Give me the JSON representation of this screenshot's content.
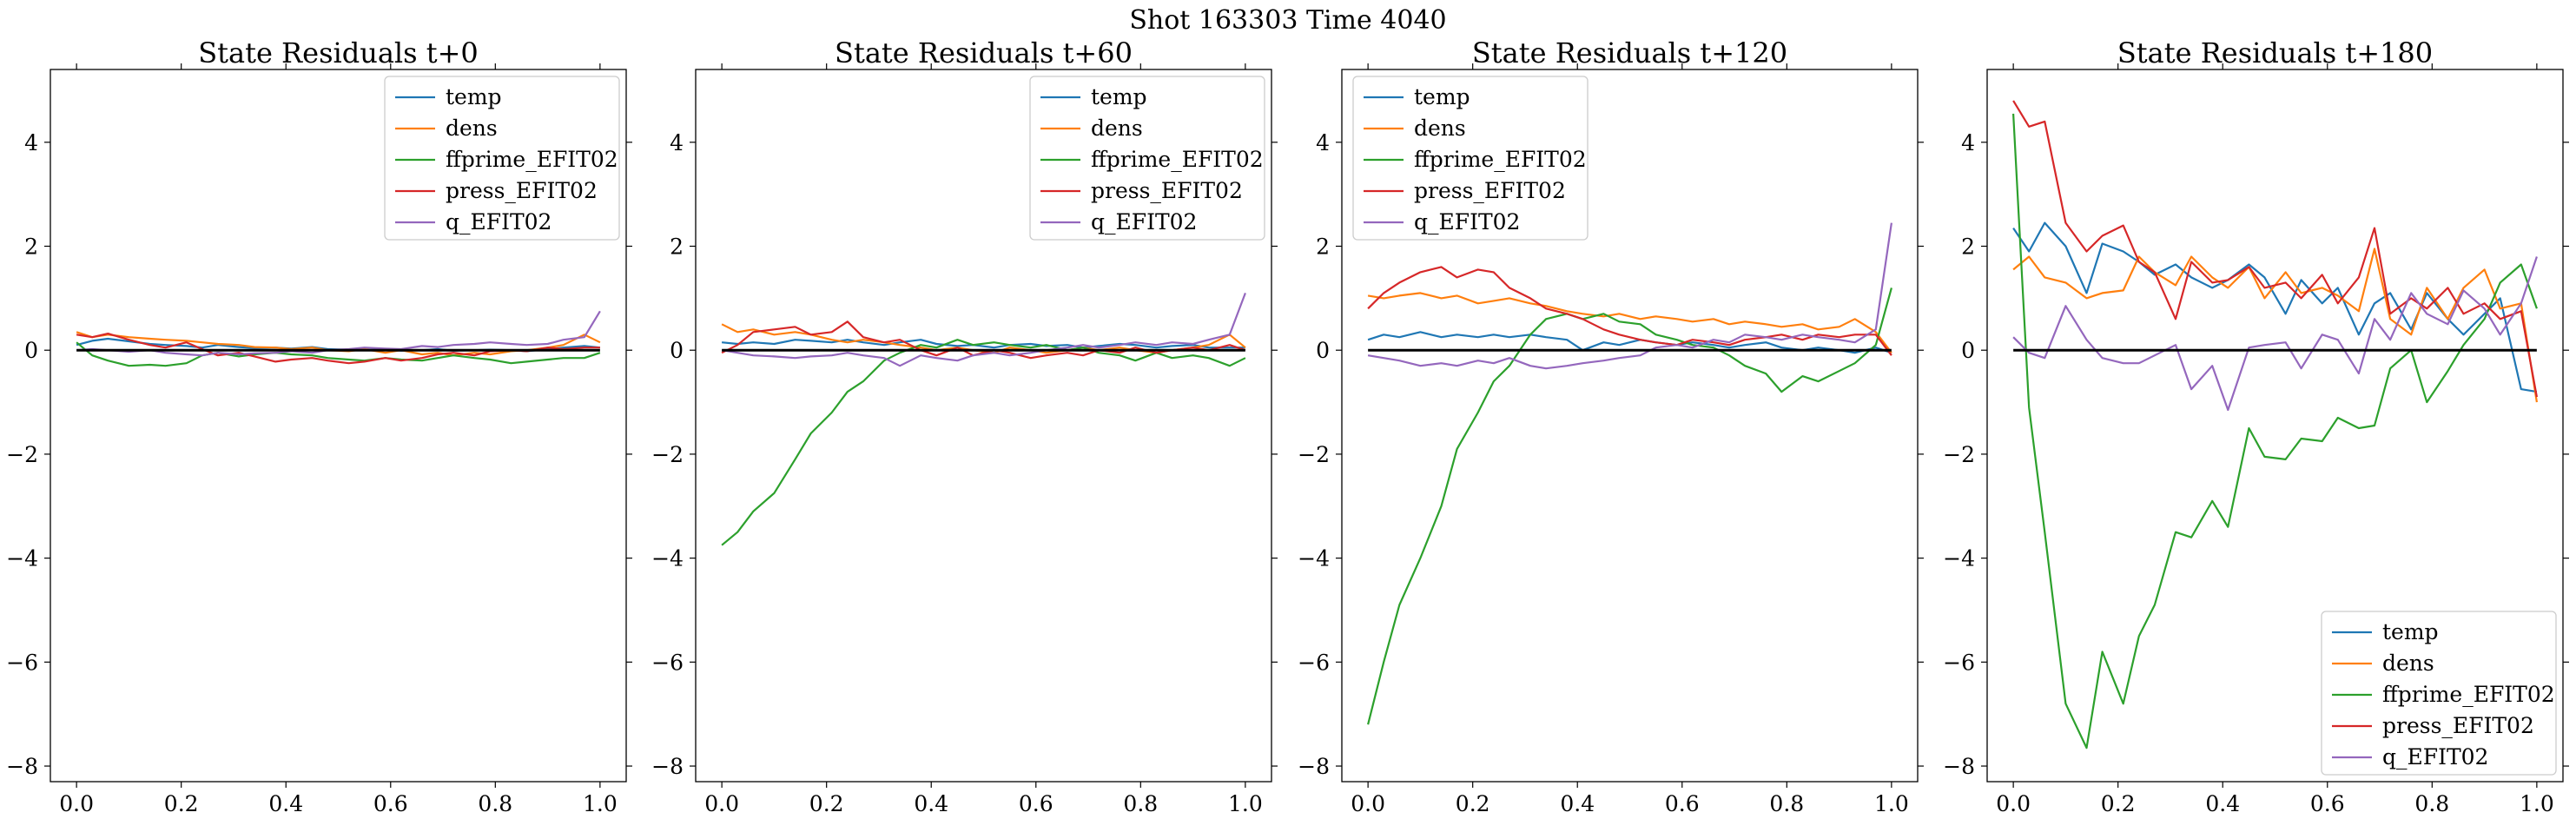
{
  "suptitle": "Shot 163303   Time 4040",
  "colors": {
    "temp": "#1f77b4",
    "dens": "#ff7f0e",
    "ffprime_EFIT02": "#2ca02c",
    "press_EFIT02": "#d62728",
    "q_EFIT02": "#9467bd",
    "zero_line": "#000000"
  },
  "chart_data": [
    {
      "type": "line",
      "title": "State Residuals t+0",
      "xlabel": "",
      "ylabel": "",
      "xlim": [
        -0.05,
        1.05
      ],
      "ylim": [
        -8.3,
        5.4
      ],
      "xticks": [
        "0.0",
        "0.2",
        "0.4",
        "0.6",
        "0.8",
        "1.0"
      ],
      "yticks": [
        "−8",
        "−6",
        "−4",
        "−2",
        "0",
        "2",
        "4"
      ],
      "grid": false,
      "legend_position": "upper-right",
      "x": [
        0.0,
        0.03,
        0.06,
        0.1,
        0.14,
        0.17,
        0.21,
        0.24,
        0.27,
        0.31,
        0.34,
        0.38,
        0.41,
        0.45,
        0.48,
        0.52,
        0.55,
        0.59,
        0.62,
        0.66,
        0.69,
        0.72,
        0.76,
        0.79,
        0.83,
        0.86,
        0.9,
        0.93,
        0.97,
        1.0
      ],
      "series": [
        {
          "name": "temp",
          "values": [
            0.1,
            0.18,
            0.22,
            0.17,
            0.12,
            0.1,
            0.08,
            0.05,
            0.1,
            0.06,
            0.04,
            0.05,
            0.03,
            0.06,
            0.02,
            0.01,
            0.0,
            0.02,
            -0.01,
            0.0,
            0.02,
            -0.01,
            0.0,
            0.01,
            0.0,
            -0.02,
            0.02,
            0.05,
            0.08,
            0.05
          ]
        },
        {
          "name": "dens",
          "values": [
            0.35,
            0.25,
            0.3,
            0.25,
            0.22,
            0.2,
            0.18,
            0.15,
            0.12,
            0.1,
            0.06,
            0.05,
            0.02,
            0.05,
            0.0,
            -0.02,
            0.02,
            -0.05,
            0.0,
            -0.08,
            -0.05,
            -0.1,
            -0.05,
            -0.08,
            -0.02,
            0.0,
            0.05,
            0.1,
            0.3,
            0.15
          ]
        },
        {
          "name": "ffprime_EFIT02",
          "values": [
            0.15,
            -0.1,
            -0.2,
            -0.3,
            -0.28,
            -0.3,
            -0.25,
            -0.1,
            -0.05,
            -0.12,
            -0.08,
            -0.05,
            -0.08,
            -0.1,
            -0.15,
            -0.18,
            -0.2,
            -0.15,
            -0.18,
            -0.2,
            -0.15,
            -0.1,
            -0.15,
            -0.18,
            -0.25,
            -0.22,
            -0.18,
            -0.15,
            -0.15,
            -0.05
          ]
        },
        {
          "name": "press_EFIT02",
          "values": [
            0.3,
            0.25,
            0.32,
            0.2,
            0.1,
            0.05,
            0.15,
            0.02,
            -0.1,
            -0.05,
            -0.12,
            -0.22,
            -0.18,
            -0.15,
            -0.2,
            -0.25,
            -0.22,
            -0.15,
            -0.2,
            -0.15,
            -0.08,
            -0.05,
            -0.1,
            -0.02,
            0.0,
            -0.02,
            0.05,
            0.02,
            0.05,
            0.05
          ]
        },
        {
          "name": "q_EFIT02",
          "values": [
            0.0,
            0.02,
            0.0,
            -0.03,
            0.0,
            -0.05,
            -0.08,
            -0.1,
            -0.05,
            -0.08,
            -0.06,
            -0.05,
            -0.02,
            -0.05,
            0.0,
            0.02,
            0.05,
            0.03,
            0.02,
            0.08,
            0.06,
            0.1,
            0.12,
            0.15,
            0.12,
            0.1,
            0.12,
            0.2,
            0.25,
            0.75
          ]
        }
      ]
    },
    {
      "type": "line",
      "title": "State Residuals t+60",
      "xlabel": "",
      "ylabel": "",
      "xlim": [
        -0.05,
        1.05
      ],
      "ylim": [
        -8.3,
        5.4
      ],
      "xticks": [
        "0.0",
        "0.2",
        "0.4",
        "0.6",
        "0.8",
        "1.0"
      ],
      "yticks": [
        "−8",
        "−6",
        "−4",
        "−2",
        "0",
        "2",
        "4"
      ],
      "grid": false,
      "legend_position": "upper-right",
      "x": [
        0.0,
        0.03,
        0.06,
        0.1,
        0.14,
        0.17,
        0.21,
        0.24,
        0.27,
        0.31,
        0.34,
        0.38,
        0.41,
        0.45,
        0.48,
        0.52,
        0.55,
        0.59,
        0.62,
        0.66,
        0.69,
        0.72,
        0.76,
        0.79,
        0.83,
        0.86,
        0.9,
        0.93,
        0.97,
        1.0
      ],
      "series": [
        {
          "name": "temp",
          "values": [
            0.15,
            0.12,
            0.15,
            0.12,
            0.2,
            0.18,
            0.15,
            0.2,
            0.15,
            0.1,
            0.15,
            0.2,
            0.12,
            0.08,
            0.1,
            0.05,
            0.1,
            0.12,
            0.08,
            0.1,
            0.05,
            0.08,
            0.12,
            0.1,
            0.05,
            0.08,
            0.1,
            0.05,
            0.05,
            0.05
          ]
        },
        {
          "name": "dens",
          "values": [
            0.5,
            0.35,
            0.4,
            0.3,
            0.35,
            0.3,
            0.2,
            0.15,
            0.2,
            0.15,
            0.1,
            0.05,
            0.0,
            0.05,
            0.0,
            -0.05,
            0.05,
            0.0,
            -0.05,
            0.0,
            0.05,
            0.0,
            0.05,
            0.0,
            -0.05,
            0.0,
            0.05,
            0.1,
            0.3,
            0.05
          ]
        },
        {
          "name": "ffprime_EFIT02",
          "values": [
            -3.75,
            -3.5,
            -3.1,
            -2.75,
            -2.1,
            -1.6,
            -1.2,
            -0.8,
            -0.6,
            -0.2,
            -0.05,
            0.1,
            0.05,
            0.2,
            0.1,
            0.15,
            0.1,
            0.05,
            0.1,
            0.0,
            0.05,
            -0.05,
            -0.1,
            -0.2,
            -0.05,
            -0.15,
            -0.1,
            -0.15,
            -0.3,
            -0.15
          ]
        },
        {
          "name": "press_EFIT02",
          "values": [
            -0.05,
            0.1,
            0.35,
            0.4,
            0.45,
            0.3,
            0.35,
            0.55,
            0.25,
            0.15,
            0.2,
            0.0,
            -0.1,
            0.05,
            -0.1,
            0.0,
            -0.05,
            -0.15,
            -0.1,
            -0.05,
            -0.1,
            0.0,
            -0.05,
            0.05,
            -0.05,
            0.0,
            0.05,
            0.0,
            0.1,
            0.0
          ]
        },
        {
          "name": "q_EFIT02",
          "values": [
            0.0,
            -0.05,
            -0.1,
            -0.12,
            -0.15,
            -0.12,
            -0.1,
            -0.05,
            -0.1,
            -0.15,
            -0.3,
            -0.1,
            -0.15,
            -0.2,
            -0.1,
            -0.05,
            -0.1,
            -0.05,
            0.0,
            0.05,
            0.1,
            0.05,
            0.1,
            0.15,
            0.1,
            0.15,
            0.12,
            0.2,
            0.3,
            1.1
          ]
        }
      ]
    },
    {
      "type": "line",
      "title": "State Residuals t+120",
      "xlabel": "",
      "ylabel": "",
      "xlim": [
        -0.05,
        1.05
      ],
      "ylim": [
        -8.3,
        5.4
      ],
      "xticks": [
        "0.0",
        "0.2",
        "0.4",
        "0.6",
        "0.8",
        "1.0"
      ],
      "yticks": [
        "−8",
        "−6",
        "−4",
        "−2",
        "0",
        "2",
        "4"
      ],
      "grid": false,
      "legend_position": "upper-left",
      "x": [
        0.0,
        0.03,
        0.06,
        0.1,
        0.14,
        0.17,
        0.21,
        0.24,
        0.27,
        0.31,
        0.34,
        0.38,
        0.41,
        0.45,
        0.48,
        0.52,
        0.55,
        0.59,
        0.62,
        0.66,
        0.69,
        0.72,
        0.76,
        0.79,
        0.83,
        0.86,
        0.9,
        0.93,
        0.97,
        1.0
      ],
      "series": [
        {
          "name": "temp",
          "values": [
            0.2,
            0.3,
            0.25,
            0.35,
            0.25,
            0.3,
            0.25,
            0.3,
            0.25,
            0.3,
            0.25,
            0.2,
            0.0,
            0.15,
            0.1,
            0.2,
            0.15,
            0.1,
            0.15,
            0.1,
            0.05,
            0.1,
            0.15,
            0.05,
            0.0,
            0.05,
            0.0,
            -0.05,
            0.05,
            -0.05
          ]
        },
        {
          "name": "dens",
          "values": [
            1.05,
            1.0,
            1.05,
            1.1,
            1.0,
            1.05,
            0.9,
            0.95,
            1.0,
            0.9,
            0.85,
            0.75,
            0.7,
            0.65,
            0.7,
            0.6,
            0.65,
            0.6,
            0.55,
            0.6,
            0.5,
            0.55,
            0.5,
            0.45,
            0.5,
            0.4,
            0.45,
            0.6,
            0.35,
            -0.05
          ]
        },
        {
          "name": "ffprime_EFIT02",
          "values": [
            -7.2,
            -6.0,
            -4.9,
            -4.0,
            -3.0,
            -1.9,
            -1.2,
            -0.6,
            -0.3,
            0.3,
            0.6,
            0.7,
            0.6,
            0.7,
            0.55,
            0.5,
            0.3,
            0.2,
            0.1,
            0.05,
            -0.1,
            -0.3,
            -0.45,
            -0.8,
            -0.5,
            -0.6,
            -0.4,
            -0.25,
            0.1,
            1.2
          ]
        },
        {
          "name": "press_EFIT02",
          "values": [
            0.8,
            1.1,
            1.3,
            1.5,
            1.6,
            1.4,
            1.55,
            1.5,
            1.2,
            1.0,
            0.8,
            0.7,
            0.6,
            0.4,
            0.3,
            0.2,
            0.15,
            0.1,
            0.2,
            0.15,
            0.1,
            0.2,
            0.25,
            0.3,
            0.2,
            0.3,
            0.25,
            0.3,
            0.3,
            -0.1
          ]
        },
        {
          "name": "q_EFIT02",
          "values": [
            -0.1,
            -0.15,
            -0.2,
            -0.3,
            -0.25,
            -0.3,
            -0.2,
            -0.25,
            -0.15,
            -0.3,
            -0.35,
            -0.3,
            -0.25,
            -0.2,
            -0.15,
            -0.1,
            0.05,
            0.1,
            0.05,
            0.2,
            0.15,
            0.3,
            0.25,
            0.2,
            0.3,
            0.25,
            0.2,
            0.15,
            0.4,
            2.45
          ]
        }
      ]
    },
    {
      "type": "line",
      "title": "State Residuals t+180",
      "xlabel": "",
      "ylabel": "",
      "xlim": [
        -0.05,
        1.05
      ],
      "ylim": [
        -8.3,
        5.4
      ],
      "xticks": [
        "0.0",
        "0.2",
        "0.4",
        "0.6",
        "0.8",
        "1.0"
      ],
      "yticks": [
        "−8",
        "−6",
        "−4",
        "−2",
        "0",
        "2",
        "4"
      ],
      "grid": false,
      "legend_position": "lower-right",
      "x": [
        0.0,
        0.03,
        0.06,
        0.1,
        0.14,
        0.17,
        0.21,
        0.24,
        0.27,
        0.31,
        0.34,
        0.38,
        0.41,
        0.45,
        0.48,
        0.52,
        0.55,
        0.59,
        0.62,
        0.66,
        0.69,
        0.72,
        0.76,
        0.79,
        0.83,
        0.86,
        0.9,
        0.93,
        0.97,
        1.0
      ],
      "series": [
        {
          "name": "temp",
          "values": [
            2.35,
            1.9,
            2.45,
            2.0,
            1.1,
            2.05,
            1.9,
            1.7,
            1.45,
            1.65,
            1.4,
            1.2,
            1.35,
            1.65,
            1.4,
            0.7,
            1.35,
            0.9,
            1.2,
            0.3,
            0.9,
            1.1,
            0.4,
            1.1,
            0.6,
            0.3,
            0.7,
            1.0,
            -0.75,
            -0.8
          ]
        },
        {
          "name": "dens",
          "values": [
            1.55,
            1.8,
            1.4,
            1.3,
            1.0,
            1.1,
            1.15,
            1.8,
            1.5,
            1.25,
            1.8,
            1.4,
            1.2,
            1.6,
            1.0,
            1.5,
            1.1,
            1.2,
            1.05,
            0.75,
            1.95,
            0.6,
            0.3,
            1.2,
            0.6,
            1.2,
            1.55,
            0.8,
            0.9,
            -1.0
          ]
        },
        {
          "name": "ffprime_EFIT02",
          "values": [
            4.55,
            -1.1,
            -3.5,
            -6.8,
            -7.65,
            -5.8,
            -6.8,
            -5.5,
            -4.9,
            -3.5,
            -3.6,
            -2.9,
            -3.4,
            -1.5,
            -2.05,
            -2.1,
            -1.7,
            -1.75,
            -1.3,
            -1.5,
            -1.45,
            -0.35,
            0.0,
            -1.0,
            -0.4,
            0.1,
            0.6,
            1.3,
            1.65,
            0.8
          ]
        },
        {
          "name": "press_EFIT02",
          "values": [
            4.8,
            4.3,
            4.4,
            2.45,
            1.9,
            2.2,
            2.4,
            1.7,
            1.5,
            0.6,
            1.7,
            1.3,
            1.35,
            1.6,
            1.2,
            1.3,
            1.0,
            1.45,
            0.9,
            1.4,
            2.35,
            0.7,
            1.0,
            0.8,
            1.2,
            0.7,
            0.9,
            0.6,
            0.75,
            -0.9
          ]
        },
        {
          "name": "q_EFIT02",
          "values": [
            0.25,
            -0.05,
            -0.15,
            0.85,
            0.2,
            -0.15,
            -0.25,
            -0.25,
            -0.1,
            0.1,
            -0.75,
            -0.3,
            -1.15,
            0.05,
            0.1,
            0.15,
            -0.35,
            0.3,
            0.2,
            -0.45,
            0.6,
            0.2,
            1.1,
            0.7,
            0.5,
            1.15,
            0.8,
            0.3,
            0.9,
            1.8
          ]
        }
      ]
    }
  ]
}
